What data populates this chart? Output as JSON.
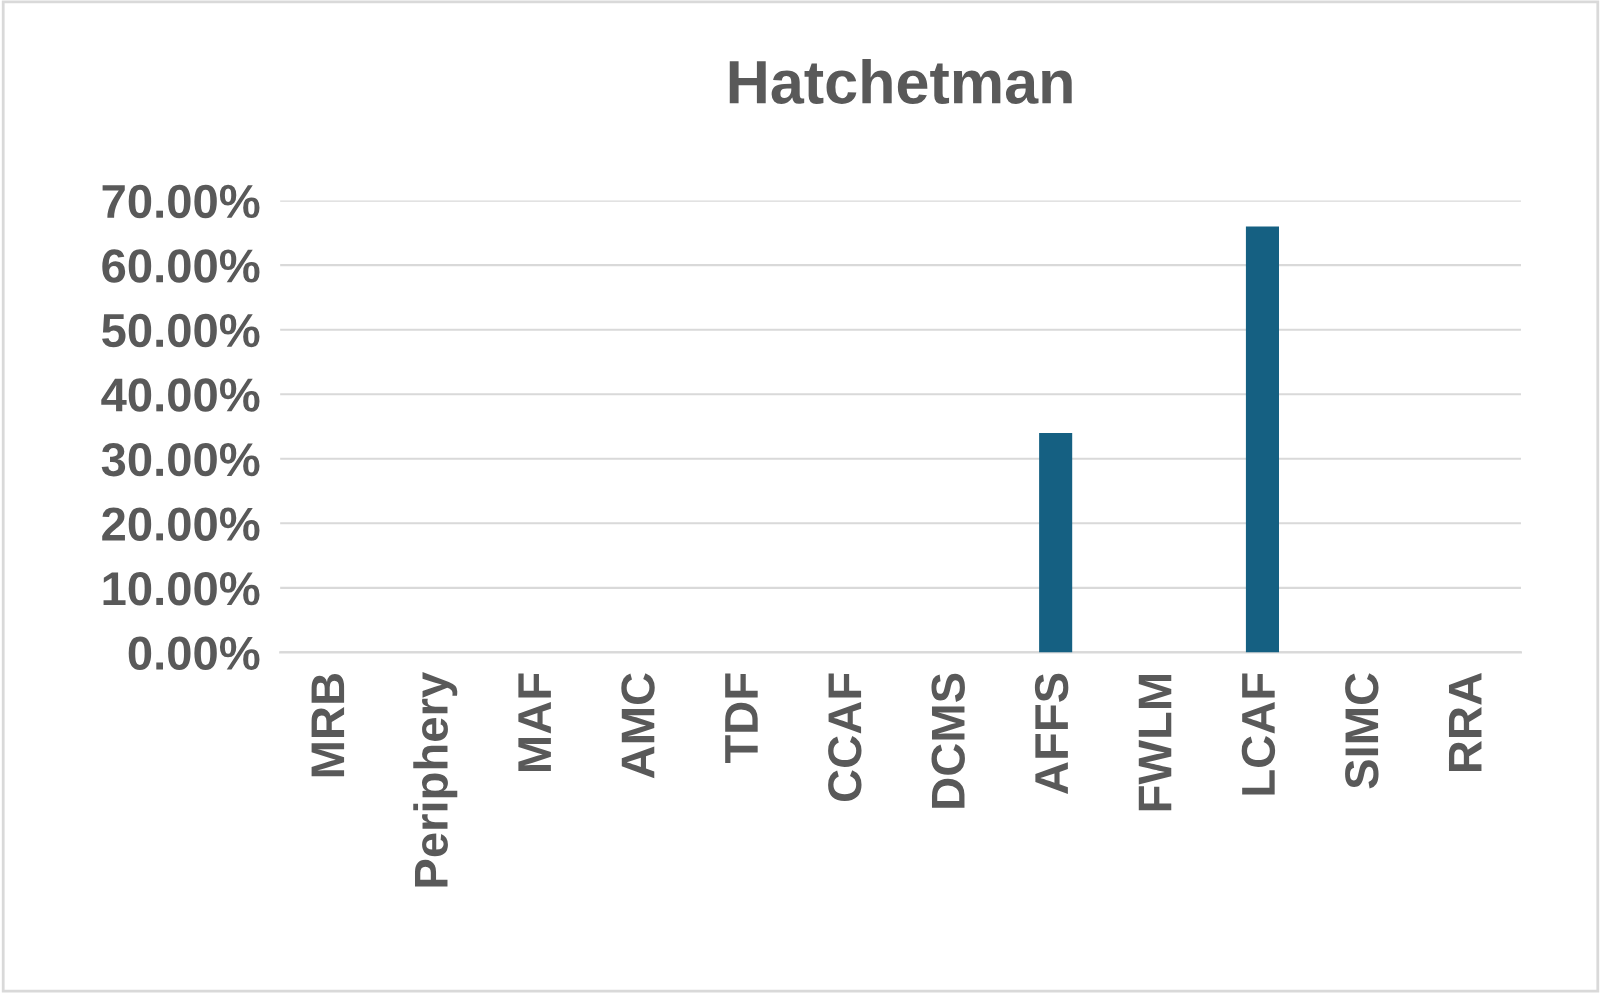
{
  "chart_data": {
    "type": "bar",
    "title": "Hatchetman",
    "categories": [
      "MRB",
      "Periphery",
      "MAF",
      "AMC",
      "TDF",
      "CCAF",
      "DCMS",
      "AFFS",
      "FWLM",
      "LCAF",
      "SIMC",
      "RRA"
    ],
    "series": [
      {
        "color": "#156082",
        "values": [
          0,
          0,
          0,
          0,
          0,
          0,
          0,
          34,
          0,
          66,
          0,
          0
        ]
      }
    ],
    "ylim": [
      0,
      70
    ],
    "yticks": [
      {
        "value": 0,
        "label": "0.00%"
      },
      {
        "value": 10,
        "label": "10.00%"
      },
      {
        "value": 20,
        "label": "20.00%"
      },
      {
        "value": 30,
        "label": "30.00%"
      },
      {
        "value": 40,
        "label": "40.00%"
      },
      {
        "value": 50,
        "label": "50.00%"
      },
      {
        "value": 60,
        "label": "60.00%"
      },
      {
        "value": 70,
        "label": "70.00%"
      }
    ],
    "grid": "y",
    "legend": false
  }
}
